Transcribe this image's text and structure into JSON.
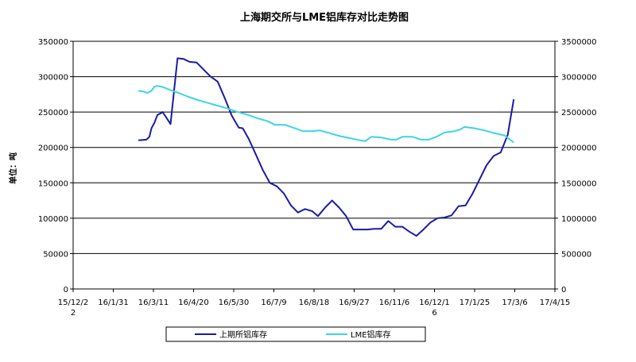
{
  "chart_data": {
    "type": "line",
    "title": "上海期交所与LME铝库存对比走势图",
    "ylabel": "单位：吨",
    "x_ticks": [
      "15/12/22",
      "16/1/31",
      "16/3/11",
      "16/4/20",
      "16/5/30",
      "16/7/9",
      "16/8/18",
      "16/9/27",
      "16/11/6",
      "16/12/16",
      "17/1/25",
      "17/3/6",
      "17/4/15"
    ],
    "x_range": [
      "2015-12-22",
      "2017-04-15"
    ],
    "y_left_range": [
      0,
      350000
    ],
    "y_left_ticks": [
      "0",
      "50000",
      "100000",
      "150000",
      "200000",
      "250000",
      "300000",
      "350000"
    ],
    "y_right_range": [
      0,
      3500000
    ],
    "y_right_ticks": [
      "0",
      "500000",
      "1000000",
      "1500000",
      "2000000",
      "2500000",
      "3000000",
      "3500000"
    ],
    "grid": "horizontal",
    "legend_position": "bottom",
    "series": [
      {
        "name": "上期所铝库存",
        "axis": "left",
        "color": "#1a1aa8",
        "points": [
          [
            "2016-02-25",
            210000
          ],
          [
            "2016-03-04",
            211000
          ],
          [
            "2016-03-07",
            215000
          ],
          [
            "2016-03-09",
            227000
          ],
          [
            "2016-03-12",
            235000
          ],
          [
            "2016-03-15",
            246000
          ],
          [
            "2016-03-18",
            248000
          ],
          [
            "2016-03-20",
            250000
          ],
          [
            "2016-03-24",
            242000
          ],
          [
            "2016-03-28",
            233000
          ],
          [
            "2016-04-04",
            326000
          ],
          [
            "2016-04-10",
            325000
          ],
          [
            "2016-04-16",
            321000
          ],
          [
            "2016-04-23",
            320000
          ],
          [
            "2016-04-30",
            310000
          ],
          [
            "2016-05-07",
            300000
          ],
          [
            "2016-05-14",
            293000
          ],
          [
            "2016-05-21",
            270000
          ],
          [
            "2016-05-28",
            245000
          ],
          [
            "2016-06-04",
            228000
          ],
          [
            "2016-06-08",
            227000
          ],
          [
            "2016-06-14",
            212000
          ],
          [
            "2016-06-21",
            190000
          ],
          [
            "2016-06-28",
            168000
          ],
          [
            "2016-07-05",
            150000
          ],
          [
            "2016-07-12",
            145000
          ],
          [
            "2016-07-19",
            135000
          ],
          [
            "2016-07-26",
            118000
          ],
          [
            "2016-08-02",
            108000
          ],
          [
            "2016-08-09",
            113000
          ],
          [
            "2016-08-16",
            110000
          ],
          [
            "2016-08-22",
            103000
          ],
          [
            "2016-08-29",
            115000
          ],
          [
            "2016-09-05",
            125000
          ],
          [
            "2016-09-12",
            115000
          ],
          [
            "2016-09-19",
            103000
          ],
          [
            "2016-09-26",
            84000
          ],
          [
            "2016-10-03",
            84000
          ],
          [
            "2016-10-10",
            84000
          ],
          [
            "2016-10-17",
            85000
          ],
          [
            "2016-10-24",
            85000
          ],
          [
            "2016-10-31",
            96000
          ],
          [
            "2016-11-07",
            88000
          ],
          [
            "2016-11-14",
            88000
          ],
          [
            "2016-11-21",
            81000
          ],
          [
            "2016-11-28",
            75000
          ],
          [
            "2016-12-05",
            84000
          ],
          [
            "2016-12-12",
            94000
          ],
          [
            "2016-12-19",
            100000
          ],
          [
            "2016-12-26",
            101000
          ],
          [
            "2017-01-02",
            104000
          ],
          [
            "2017-01-09",
            117000
          ],
          [
            "2017-01-16",
            118000
          ],
          [
            "2017-01-23",
            135000
          ],
          [
            "2017-01-30",
            155000
          ],
          [
            "2017-02-06",
            175000
          ],
          [
            "2017-02-13",
            188000
          ],
          [
            "2017-02-20",
            193000
          ],
          [
            "2017-02-27",
            218000
          ],
          [
            "2017-03-05",
            268000
          ]
        ]
      },
      {
        "name": "LME铝库存",
        "axis": "right",
        "color": "#3cd4e6",
        "points": [
          [
            "2016-02-25",
            2800000
          ],
          [
            "2016-03-01",
            2790000
          ],
          [
            "2016-03-05",
            2770000
          ],
          [
            "2016-03-09",
            2800000
          ],
          [
            "2016-03-12",
            2860000
          ],
          [
            "2016-03-15",
            2870000
          ],
          [
            "2016-03-21",
            2850000
          ],
          [
            "2016-03-28",
            2810000
          ],
          [
            "2016-04-05",
            2770000
          ],
          [
            "2016-04-14",
            2720000
          ],
          [
            "2016-04-24",
            2670000
          ],
          [
            "2016-05-04",
            2630000
          ],
          [
            "2016-05-14",
            2590000
          ],
          [
            "2016-05-24",
            2550000
          ],
          [
            "2016-06-03",
            2500000
          ],
          [
            "2016-06-13",
            2460000
          ],
          [
            "2016-06-23",
            2410000
          ],
          [
            "2016-07-03",
            2370000
          ],
          [
            "2016-07-10",
            2320000
          ],
          [
            "2016-07-20",
            2320000
          ],
          [
            "2016-07-30",
            2270000
          ],
          [
            "2016-08-07",
            2230000
          ],
          [
            "2016-08-15",
            2230000
          ],
          [
            "2016-08-24",
            2240000
          ],
          [
            "2016-09-03",
            2200000
          ],
          [
            "2016-09-13",
            2160000
          ],
          [
            "2016-09-23",
            2130000
          ],
          [
            "2016-10-03",
            2100000
          ],
          [
            "2016-10-08",
            2090000
          ],
          [
            "2016-10-14",
            2150000
          ],
          [
            "2016-10-24",
            2140000
          ],
          [
            "2016-11-03",
            2110000
          ],
          [
            "2016-11-08",
            2110000
          ],
          [
            "2016-11-14",
            2150000
          ],
          [
            "2016-11-24",
            2150000
          ],
          [
            "2016-12-03",
            2110000
          ],
          [
            "2016-12-10",
            2110000
          ],
          [
            "2016-12-18",
            2150000
          ],
          [
            "2016-12-26",
            2210000
          ],
          [
            "2017-01-05",
            2230000
          ],
          [
            "2017-01-10",
            2250000
          ],
          [
            "2017-01-15",
            2290000
          ],
          [
            "2017-01-25",
            2270000
          ],
          [
            "2017-02-04",
            2240000
          ],
          [
            "2017-02-14",
            2200000
          ],
          [
            "2017-02-24",
            2170000
          ],
          [
            "2017-03-05",
            2070000
          ]
        ]
      }
    ]
  }
}
